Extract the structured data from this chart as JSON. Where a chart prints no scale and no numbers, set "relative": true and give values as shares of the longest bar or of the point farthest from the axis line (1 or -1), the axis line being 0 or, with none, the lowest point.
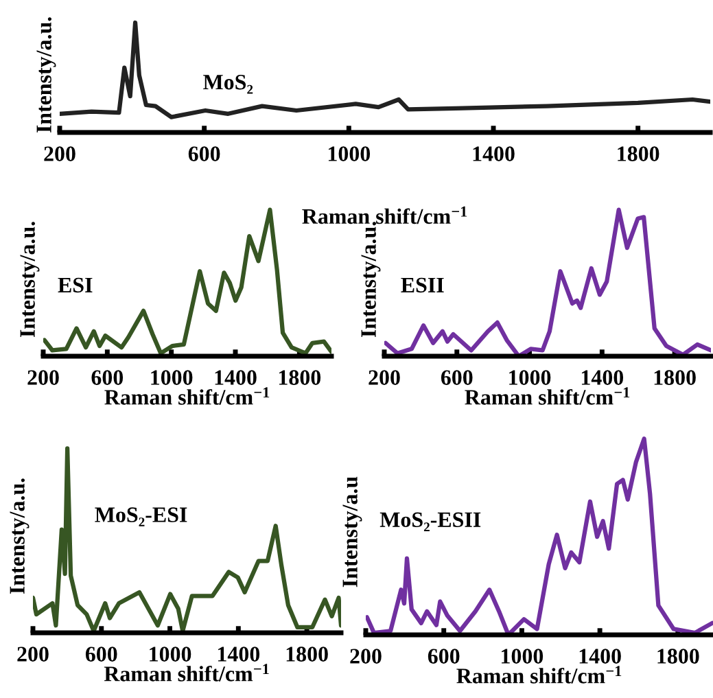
{
  "chart_data": [
    {
      "type": "line",
      "relative": true,
      "xlabel": "Raman shift/cm$^{−1}$",
      "ylabel": "Intensty/a.u.",
      "annotations": [
        "MoS₂"
      ],
      "xlim": [
        200,
        2000
      ],
      "xticks": [
        200,
        600,
        1000,
        1400,
        1800
      ],
      "series": [
        {
          "color": "#222222",
          "x": [
            200,
            288,
            364,
            379,
            395,
            409,
            420,
            439,
            465,
            509,
            603,
            666,
            760,
            855,
            1019,
            1082,
            1138,
            1164,
            1296,
            1548,
            1800,
            1951,
            2000
          ],
          "values": [
            0.17,
            0.19,
            0.18,
            0.59,
            0.33,
            1.0,
            0.52,
            0.25,
            0.24,
            0.14,
            0.2,
            0.17,
            0.24,
            0.2,
            0.26,
            0.23,
            0.3,
            0.21,
            0.22,
            0.24,
            0.27,
            0.3,
            0.28
          ]
        }
      ]
    },
    {
      "type": "line",
      "relative": true,
      "xlabel": "Raman shift/cm$^{−1}$",
      "ylabel": "Intensty/a.u.",
      "annotations": [
        "ESI"
      ],
      "xlim": [
        200,
        2000
      ],
      "xticks": [
        200,
        600,
        1000,
        1400,
        1800
      ],
      "series": [
        {
          "color": "#375623",
          "x": [
            207,
            257,
            344,
            408,
            466,
            516,
            552,
            588,
            689,
            732,
            826,
            883,
            934,
            1006,
            1078,
            1178,
            1229,
            1279,
            1329,
            1365,
            1401,
            1437,
            1487,
            1544,
            1616,
            1660,
            1696,
            1751,
            1838,
            1881,
            1953,
            2000
          ],
          "values": [
            0.11,
            0.04,
            0.05,
            0.19,
            0.06,
            0.17,
            0.07,
            0.14,
            0.06,
            0.13,
            0.31,
            0.15,
            0.02,
            0.07,
            0.08,
            0.58,
            0.36,
            0.31,
            0.57,
            0.5,
            0.38,
            0.47,
            0.82,
            0.65,
            1.0,
            0.59,
            0.16,
            0.06,
            0.02,
            0.09,
            0.1,
            0.03
          ]
        }
      ]
    },
    {
      "type": "line",
      "relative": true,
      "xlabel": "Raman shift/cm$^{−1}$",
      "ylabel": "Intensty/a.u.",
      "annotations": [
        "ESII"
      ],
      "xlim": [
        200,
        2000
      ],
      "xticks": [
        200,
        600,
        1000,
        1400,
        1800
      ],
      "series": [
        {
          "color": "#7030a0",
          "x": [
            207,
            272,
            351,
            416,
            469,
            521,
            548,
            580,
            679,
            771,
            823,
            875,
            941,
            1007,
            1072,
            1111,
            1170,
            1236,
            1262,
            1282,
            1341,
            1387,
            1426,
            1492,
            1538,
            1597,
            1630,
            1689,
            1754,
            1846,
            1925,
            2000
          ],
          "values": [
            0.09,
            0.02,
            0.05,
            0.21,
            0.09,
            0.17,
            0.1,
            0.15,
            0.04,
            0.17,
            0.23,
            0.11,
            0.0,
            0.05,
            0.04,
            0.17,
            0.58,
            0.36,
            0.38,
            0.33,
            0.6,
            0.42,
            0.51,
            1.0,
            0.74,
            0.94,
            0.95,
            0.19,
            0.07,
            0.01,
            0.08,
            0.04
          ]
        }
      ]
    },
    {
      "type": "line",
      "relative": true,
      "xlabel": "Raman shift/cm$^{−1}$",
      "ylabel": "Intensty/a.u.",
      "annotations": [
        "MoS₂-ESI"
      ],
      "xlim": [
        200,
        2000
      ],
      "xticks": [
        200,
        600,
        1000,
        1400,
        1800
      ],
      "series": [
        {
          "color": "#375623",
          "x": [
            200,
            220,
            314,
            334,
            368,
            387,
            401,
            421,
            461,
            514,
            555,
            622,
            649,
            702,
            822,
            929,
            1002,
            1049,
            1075,
            1129,
            1249,
            1344,
            1397,
            1437,
            1518,
            1571,
            1618,
            1651,
            1691,
            1745,
            1832,
            1906,
            1946,
            1986,
            2000
          ],
          "values": [
            0.19,
            0.1,
            0.16,
            0.04,
            0.56,
            0.32,
            1.0,
            0.31,
            0.15,
            0.1,
            0.01,
            0.16,
            0.08,
            0.16,
            0.22,
            0.04,
            0.21,
            0.13,
            0.01,
            0.2,
            0.2,
            0.33,
            0.3,
            0.22,
            0.39,
            0.39,
            0.58,
            0.37,
            0.15,
            0.03,
            0.03,
            0.18,
            0.09,
            0.19,
            0.04
          ]
        }
      ]
    },
    {
      "type": "line",
      "relative": true,
      "xlabel": "Raman shift/cm$^{−1}$",
      "ylabel": "Intensty/a.u",
      "annotations": [
        "MoS₂-ESII"
      ],
      "xlim": [
        200,
        1980
      ],
      "xticks": [
        200,
        600,
        1000,
        1400,
        1800
      ],
      "series": [
        {
          "color": "#7030a0",
          "x": [
            206,
            242,
            327,
            381,
            397,
            411,
            435,
            484,
            514,
            562,
            581,
            617,
            683,
            762,
            834,
            883,
            931,
            1011,
            1078,
            1138,
            1180,
            1222,
            1253,
            1295,
            1350,
            1386,
            1416,
            1446,
            1488,
            1518,
            1543,
            1585,
            1627,
            1657,
            1700,
            1778,
            1887,
            1976
          ],
          "values": [
            0.09,
            0.01,
            0.02,
            0.23,
            0.16,
            0.39,
            0.13,
            0.06,
            0.12,
            0.05,
            0.17,
            0.1,
            0.02,
            0.12,
            0.23,
            0.12,
            0.0,
            0.08,
            0.03,
            0.36,
            0.51,
            0.34,
            0.42,
            0.37,
            0.68,
            0.5,
            0.58,
            0.44,
            0.77,
            0.79,
            0.69,
            0.88,
            1.0,
            0.72,
            0.15,
            0.03,
            0.01,
            0.06
          ]
        }
      ]
    }
  ]
}
